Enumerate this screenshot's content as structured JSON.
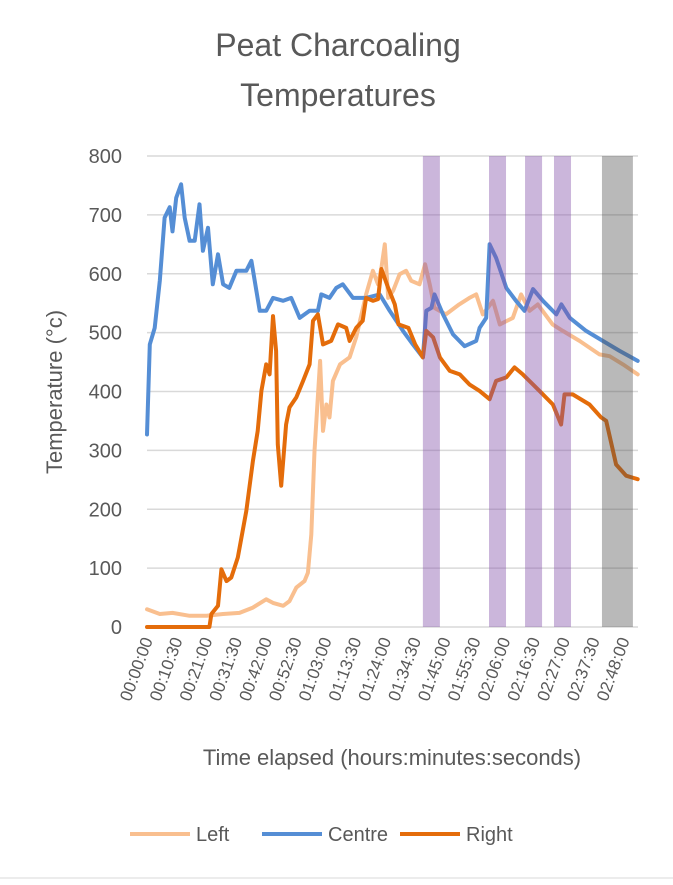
{
  "chart_data": {
    "type": "line",
    "title": [
      "Peat Charcoaling",
      "Temperatures"
    ],
    "xlabel": "Time elapsed (hours:minutes:seconds)",
    "ylabel": "Temperature (°c)",
    "ylim": [
      0,
      800
    ],
    "yticks": [
      0,
      100,
      200,
      300,
      400,
      500,
      600,
      700,
      800
    ],
    "xlim_minutes": [
      0,
      173
    ],
    "xtick_minutes_step": 10.5,
    "xtick_labels": [
      "00:00:00",
      "00:10:30",
      "00:21:00",
      "00:31:30",
      "00:42:00",
      "00:52:30",
      "01:03:00",
      "01:13:30",
      "01:24:00",
      "01:34:30",
      "01:45:00",
      "01:55:30",
      "02:06:00",
      "02:16:30",
      "02:27:00",
      "02:37:30",
      "02:48:00"
    ],
    "grid": true,
    "legend_position": "bottom",
    "bands": [
      {
        "start": 97.2,
        "end": 103.2,
        "color": "purple"
      },
      {
        "start": 120.5,
        "end": 126.5,
        "color": "purple"
      },
      {
        "start": 133.2,
        "end": 139.2,
        "color": "purple"
      },
      {
        "start": 143.4,
        "end": 149.4,
        "color": "purple"
      },
      {
        "start": 160.3,
        "end": 171.2,
        "color": "gray"
      }
    ],
    "band_colors": {
      "purple": "rgba(130,80,170,0.42)",
      "gray": "rgba(80,80,80,0.4)"
    },
    "series": [
      {
        "name": "Left",
        "color": "#F9BF8F",
        "points": [
          [
            0,
            30
          ],
          [
            4.5,
            22
          ],
          [
            9,
            24
          ],
          [
            15,
            19
          ],
          [
            21,
            19
          ],
          [
            26.8,
            22
          ],
          [
            32.6,
            24
          ],
          [
            37.3,
            33
          ],
          [
            42,
            47
          ],
          [
            44.4,
            41
          ],
          [
            48,
            36
          ],
          [
            50.2,
            44
          ],
          [
            52.6,
            67
          ],
          [
            55.5,
            78
          ],
          [
            56.7,
            92
          ],
          [
            57.9,
            157
          ],
          [
            59,
            299
          ],
          [
            61,
            452
          ],
          [
            62,
            333
          ],
          [
            63.2,
            378
          ],
          [
            64.3,
            356
          ],
          [
            65.5,
            418
          ],
          [
            68,
            446
          ],
          [
            71.4,
            458
          ],
          [
            73.7,
            492
          ],
          [
            77.2,
            565
          ],
          [
            79.6,
            605
          ],
          [
            81.4,
            582
          ],
          [
            82.6,
            610
          ],
          [
            83.8,
            650
          ],
          [
            85,
            559
          ],
          [
            86.7,
            571
          ],
          [
            89,
            599
          ],
          [
            91.3,
            605
          ],
          [
            93.1,
            588
          ],
          [
            96,
            582
          ],
          [
            98,
            616
          ],
          [
            99.6,
            582
          ],
          [
            101.3,
            542
          ],
          [
            105.3,
            531
          ],
          [
            110,
            548
          ],
          [
            113.6,
            559
          ],
          [
            116,
            565
          ],
          [
            118.3,
            531
          ],
          [
            121.9,
            554
          ],
          [
            124.3,
            514
          ],
          [
            128.9,
            525
          ],
          [
            131.8,
            565
          ],
          [
            134.8,
            537
          ],
          [
            137.7,
            548
          ],
          [
            142.9,
            514
          ],
          [
            146.5,
            503
          ],
          [
            152.4,
            486
          ],
          [
            159.4,
            463
          ],
          [
            163,
            460
          ],
          [
            167.7,
            446
          ],
          [
            172.9,
            429
          ]
        ]
      },
      {
        "name": "Centre",
        "color": "#558ED5",
        "points": [
          [
            0,
            327
          ],
          [
            1,
            480
          ],
          [
            2.7,
            508
          ],
          [
            4.5,
            588
          ],
          [
            6.2,
            695
          ],
          [
            8,
            713
          ],
          [
            9,
            672
          ],
          [
            10.3,
            729
          ],
          [
            12,
            752
          ],
          [
            13.3,
            695
          ],
          [
            15,
            656
          ],
          [
            16.8,
            656
          ],
          [
            18.5,
            718
          ],
          [
            19.7,
            639
          ],
          [
            21.5,
            678
          ],
          [
            23.2,
            582
          ],
          [
            25,
            633
          ],
          [
            26.8,
            582
          ],
          [
            29,
            576
          ],
          [
            31.5,
            605
          ],
          [
            35,
            605
          ],
          [
            36.8,
            622
          ],
          [
            39.7,
            537
          ],
          [
            42,
            537
          ],
          [
            44.4,
            559
          ],
          [
            48,
            554
          ],
          [
            50.8,
            559
          ],
          [
            53.8,
            525
          ],
          [
            57.3,
            537
          ],
          [
            60.2,
            537
          ],
          [
            61.4,
            565
          ],
          [
            64.3,
            559
          ],
          [
            66.7,
            576
          ],
          [
            69,
            582
          ],
          [
            72.6,
            559
          ],
          [
            77.2,
            559
          ],
          [
            82,
            565
          ],
          [
            85.5,
            537
          ],
          [
            90.2,
            503
          ],
          [
            93.7,
            480
          ],
          [
            97.2,
            458
          ],
          [
            98.4,
            537
          ],
          [
            100.2,
            542
          ],
          [
            101.3,
            565
          ],
          [
            104.3,
            531
          ],
          [
            107.8,
            497
          ],
          [
            111.9,
            477
          ],
          [
            116,
            486
          ],
          [
            117.2,
            508
          ],
          [
            119.5,
            525
          ],
          [
            120.7,
            650
          ],
          [
            123,
            627
          ],
          [
            126.6,
            576
          ],
          [
            130,
            554
          ],
          [
            133,
            537
          ],
          [
            136,
            574
          ],
          [
            139.5,
            554
          ],
          [
            144.2,
            531
          ],
          [
            146,
            548
          ],
          [
            149,
            525
          ],
          [
            154.7,
            503
          ],
          [
            160.6,
            486
          ],
          [
            166.5,
            469
          ],
          [
            172.9,
            452
          ]
        ]
      },
      {
        "name": "Right",
        "color": "#E46C0A",
        "points": [
          [
            0,
            0
          ],
          [
            22,
            0
          ],
          [
            22.7,
            22
          ],
          [
            25,
            36
          ],
          [
            26.2,
            98
          ],
          [
            28,
            78
          ],
          [
            29.7,
            84
          ],
          [
            32,
            118
          ],
          [
            35,
            197
          ],
          [
            37.3,
            282
          ],
          [
            39,
            333
          ],
          [
            40.3,
            401
          ],
          [
            42,
            446
          ],
          [
            43.2,
            429
          ],
          [
            44.4,
            528
          ],
          [
            45.5,
            469
          ],
          [
            46.1,
            310
          ],
          [
            47.3,
            240
          ],
          [
            49,
            344
          ],
          [
            50.2,
            373
          ],
          [
            52.6,
            390
          ],
          [
            55,
            418
          ],
          [
            57.3,
            446
          ],
          [
            58.5,
            520
          ],
          [
            60.2,
            531
          ],
          [
            62,
            480
          ],
          [
            64.9,
            486
          ],
          [
            67.3,
            514
          ],
          [
            70.2,
            508
          ],
          [
            71.4,
            486
          ],
          [
            73.7,
            508
          ],
          [
            76,
            520
          ],
          [
            77.2,
            559
          ],
          [
            79.6,
            554
          ],
          [
            81.4,
            557
          ],
          [
            82.6,
            608
          ],
          [
            85,
            576
          ],
          [
            87.3,
            548
          ],
          [
            88.6,
            514
          ],
          [
            92.1,
            508
          ],
          [
            94.5,
            480
          ],
          [
            97.2,
            458
          ],
          [
            98.4,
            503
          ],
          [
            100.8,
            492
          ],
          [
            103.2,
            458
          ],
          [
            106.7,
            435
          ],
          [
            110.2,
            429
          ],
          [
            113.6,
            412
          ],
          [
            117.2,
            401
          ],
          [
            120.7,
            387
          ],
          [
            123,
            418
          ],
          [
            126.6,
            424
          ],
          [
            129.5,
            441
          ],
          [
            132.4,
            429
          ],
          [
            138.3,
            401
          ],
          [
            143,
            378
          ],
          [
            145.9,
            344
          ],
          [
            147.1,
            395
          ],
          [
            150,
            395
          ],
          [
            155.9,
            378
          ],
          [
            160,
            356
          ],
          [
            161.8,
            350
          ],
          [
            165.3,
            276
          ],
          [
            168.8,
            257
          ],
          [
            172.9,
            251
          ]
        ]
      }
    ]
  }
}
